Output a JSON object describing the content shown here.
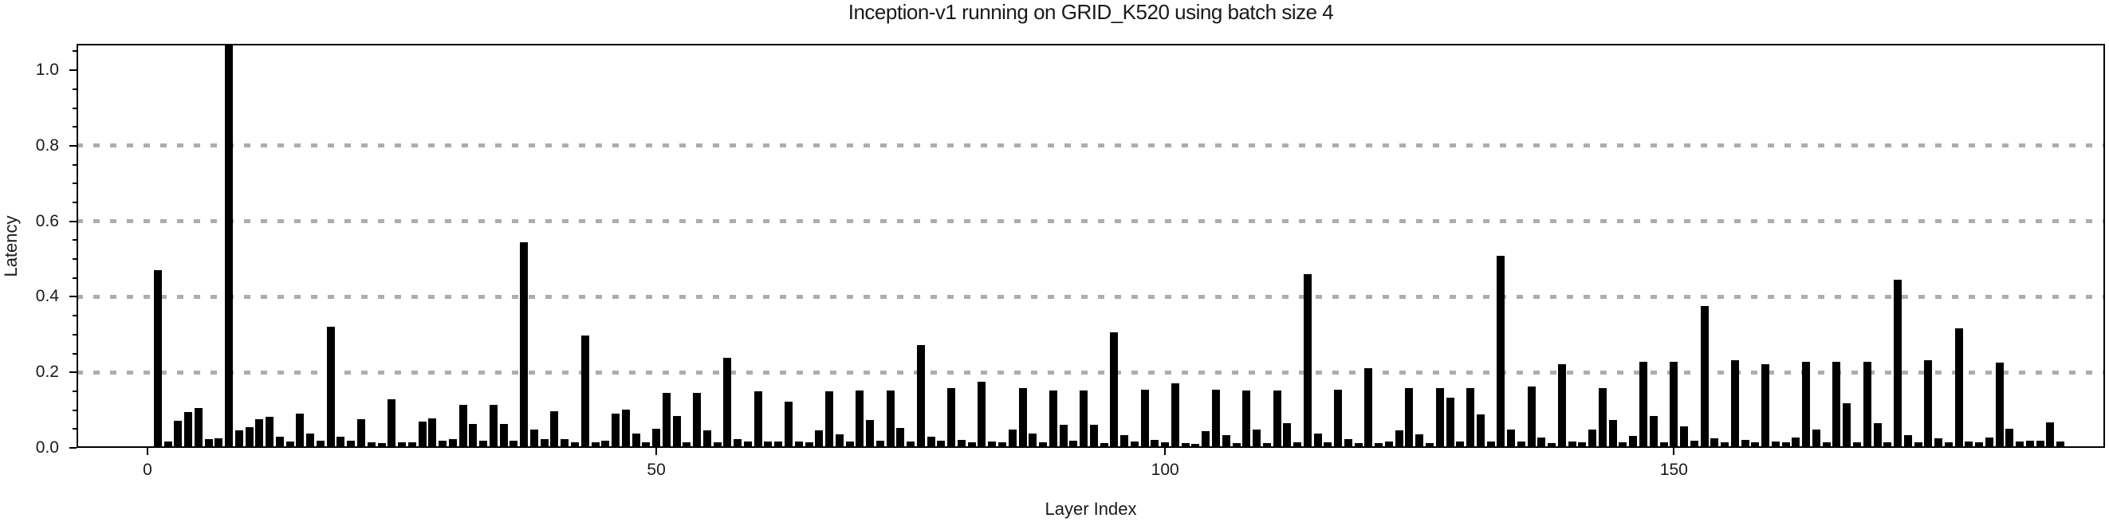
{
  "title": "Inception-v1 running on GRID_K520 using batch size 4",
  "colors": {
    "bar": "#000000",
    "grid": "#adadad",
    "axis": "#000000",
    "text": "#1a1a1a",
    "background": "#ffffff"
  },
  "chart_data": {
    "type": "bar",
    "title": "Inception-v1 running on GRID_K520 using batch size 4",
    "xlabel": "Layer Index",
    "ylabel": "Latency",
    "x_start": 0,
    "x_ticks": [
      0,
      50,
      100,
      150
    ],
    "y_ticks": [
      0.0,
      0.2,
      0.4,
      0.6,
      0.8,
      1.0
    ],
    "y_minor_tick_step": 0.05,
    "grid_y": [
      0.2,
      0.4,
      0.6,
      0.8
    ],
    "ylim": [
      0,
      1.07
    ],
    "grid": "dotted-horizontal",
    "legend": "none",
    "bar_color": "#000000",
    "values": [
      0.004,
      0.47,
      0.016,
      0.072,
      0.094,
      0.105,
      0.024,
      0.026,
      1.07,
      0.047,
      0.054,
      0.077,
      0.082,
      0.03,
      0.016,
      0.091,
      0.038,
      0.018,
      0.32,
      0.03,
      0.019,
      0.076,
      0.014,
      0.013,
      0.128,
      0.014,
      0.014,
      0.07,
      0.078,
      0.019,
      0.023,
      0.113,
      0.064,
      0.02,
      0.113,
      0.064,
      0.02,
      0.545,
      0.049,
      0.023,
      0.097,
      0.024,
      0.014,
      0.298,
      0.015,
      0.018,
      0.09,
      0.101,
      0.037,
      0.015,
      0.05,
      0.145,
      0.084,
      0.014,
      0.145,
      0.046,
      0.014,
      0.238,
      0.024,
      0.016,
      0.149,
      0.016,
      0.016,
      0.123,
      0.016,
      0.015,
      0.046,
      0.149,
      0.035,
      0.016,
      0.153,
      0.074,
      0.018,
      0.153,
      0.053,
      0.016,
      0.273,
      0.029,
      0.018,
      0.159,
      0.021,
      0.015,
      0.175,
      0.016,
      0.014,
      0.048,
      0.159,
      0.038,
      0.015,
      0.153,
      0.062,
      0.02,
      0.153,
      0.062,
      0.012,
      0.307,
      0.034,
      0.016,
      0.155,
      0.021,
      0.014,
      0.172,
      0.012,
      0.01,
      0.045,
      0.155,
      0.033,
      0.012,
      0.151,
      0.048,
      0.012,
      0.151,
      0.065,
      0.014,
      0.461,
      0.039,
      0.014,
      0.155,
      0.024,
      0.012,
      0.212,
      0.012,
      0.016,
      0.047,
      0.158,
      0.036,
      0.012,
      0.158,
      0.134,
      0.016,
      0.158,
      0.088,
      0.016,
      0.509,
      0.048,
      0.016,
      0.163,
      0.027,
      0.012,
      0.222,
      0.016,
      0.014,
      0.049,
      0.158,
      0.074,
      0.014,
      0.032,
      0.227,
      0.084,
      0.014,
      0.227,
      0.057,
      0.02,
      0.375,
      0.025,
      0.014,
      0.232,
      0.021,
      0.014,
      0.221,
      0.016,
      0.014,
      0.027,
      0.227,
      0.049,
      0.014,
      0.227,
      0.119,
      0.014,
      0.227,
      0.066,
      0.014,
      0.445,
      0.034,
      0.014,
      0.233,
      0.026,
      0.014,
      0.316,
      0.016,
      0.014,
      0.027,
      0.226,
      0.05,
      0.016,
      0.018,
      0.018,
      0.068,
      0.016
    ],
    "y_tick_label_format": "one-decimal",
    "max_bar_clipped_at_top": true,
    "clipped_bar_index": 8
  }
}
